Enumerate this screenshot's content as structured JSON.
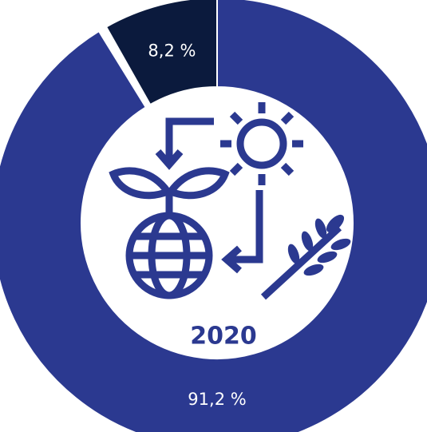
{
  "chart_data": {
    "type": "donut",
    "values": [
      8.2,
      91.2
    ],
    "value_labels": [
      "8,2 %",
      "91,2 %"
    ],
    "colors": [
      "#0b1a3d",
      "#2b3990"
    ],
    "center_label": "2020"
  }
}
